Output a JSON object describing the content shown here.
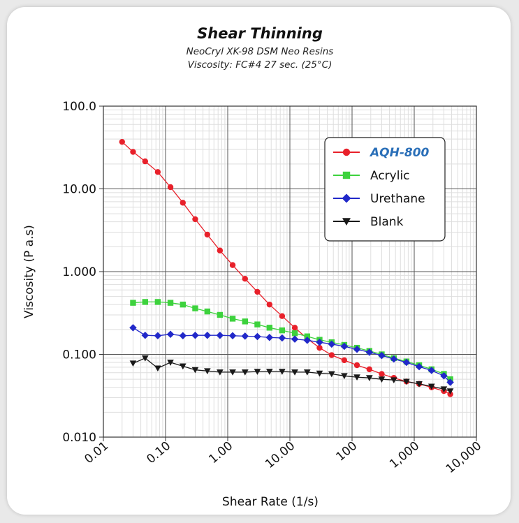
{
  "chart_data": {
    "type": "line",
    "title": "Shear Thinning",
    "subtitle_lines": [
      "NeoCryl XK-98 DSM Neo Resins",
      "Viscosity: FC#4 27 sec. (25°C)"
    ],
    "xlabel": "Shear Rate (1/s)",
    "ylabel": "Viscosity (P a.s)",
    "xscale": "log",
    "yscale": "log",
    "xlim": [
      0.01,
      10000
    ],
    "ylim": [
      0.01,
      100
    ],
    "x_tick_labels": [
      "0.01",
      "0.10",
      "1.00",
      "10.00",
      "100",
      "1,000",
      "10,000"
    ],
    "y_tick_labels": [
      "0.010",
      "0.100",
      "1.000",
      "10.00",
      "100.0"
    ],
    "grid": true,
    "legend_position": "top-right",
    "series": [
      {
        "name": "AQH-800",
        "color": "#e8202a",
        "marker": "circle",
        "x": [
          0.02,
          0.03,
          0.047,
          0.075,
          0.12,
          0.19,
          0.3,
          0.47,
          0.75,
          1.2,
          1.9,
          3.0,
          4.7,
          7.5,
          12,
          19,
          30,
          47,
          75,
          120,
          190,
          300,
          470,
          750,
          1200,
          1900,
          3000,
          3800
        ],
        "y": [
          37,
          28,
          21.5,
          16,
          10.5,
          6.8,
          4.3,
          2.8,
          1.8,
          1.2,
          0.82,
          0.57,
          0.4,
          0.29,
          0.21,
          0.155,
          0.12,
          0.098,
          0.085,
          0.074,
          0.066,
          0.058,
          0.052,
          0.047,
          0.044,
          0.04,
          0.036,
          0.033
        ]
      },
      {
        "name": "Acrylic",
        "color": "#3dd23d",
        "marker": "square",
        "x": [
          0.03,
          0.047,
          0.075,
          0.12,
          0.19,
          0.3,
          0.47,
          0.75,
          1.2,
          1.9,
          3.0,
          4.7,
          7.5,
          12,
          19,
          30,
          47,
          75,
          120,
          190,
          300,
          470,
          750,
          1200,
          1900,
          3000,
          3800
        ],
        "y": [
          0.42,
          0.43,
          0.43,
          0.42,
          0.4,
          0.36,
          0.33,
          0.3,
          0.27,
          0.25,
          0.23,
          0.21,
          0.195,
          0.18,
          0.165,
          0.15,
          0.14,
          0.13,
          0.12,
          0.11,
          0.1,
          0.09,
          0.082,
          0.074,
          0.066,
          0.058,
          0.05
        ]
      },
      {
        "name": "Urethane",
        "color": "#2128c9",
        "marker": "diamond",
        "x": [
          0.03,
          0.047,
          0.075,
          0.12,
          0.19,
          0.3,
          0.47,
          0.75,
          1.2,
          1.9,
          3.0,
          4.7,
          7.5,
          12,
          19,
          30,
          47,
          75,
          120,
          190,
          300,
          470,
          750,
          1200,
          1900,
          3000,
          3800
        ],
        "y": [
          0.21,
          0.17,
          0.168,
          0.175,
          0.168,
          0.17,
          0.17,
          0.17,
          0.168,
          0.166,
          0.164,
          0.16,
          0.158,
          0.153,
          0.148,
          0.14,
          0.133,
          0.125,
          0.115,
          0.106,
          0.097,
          0.088,
          0.08,
          0.071,
          0.064,
          0.055,
          0.046
        ]
      },
      {
        "name": "Blank",
        "color": "#1a1a1a",
        "marker": "triangle-down",
        "x": [
          0.03,
          0.047,
          0.075,
          0.12,
          0.19,
          0.3,
          0.47,
          0.75,
          1.2,
          1.9,
          3.0,
          4.7,
          7.5,
          12,
          19,
          30,
          47,
          75,
          120,
          190,
          300,
          470,
          750,
          1200,
          1900,
          3000,
          3800
        ],
        "y": [
          0.078,
          0.09,
          0.068,
          0.08,
          0.072,
          0.065,
          0.063,
          0.061,
          0.061,
          0.061,
          0.062,
          0.062,
          0.062,
          0.061,
          0.061,
          0.059,
          0.058,
          0.055,
          0.053,
          0.052,
          0.05,
          0.049,
          0.047,
          0.044,
          0.041,
          0.038,
          0.036
        ]
      }
    ]
  }
}
